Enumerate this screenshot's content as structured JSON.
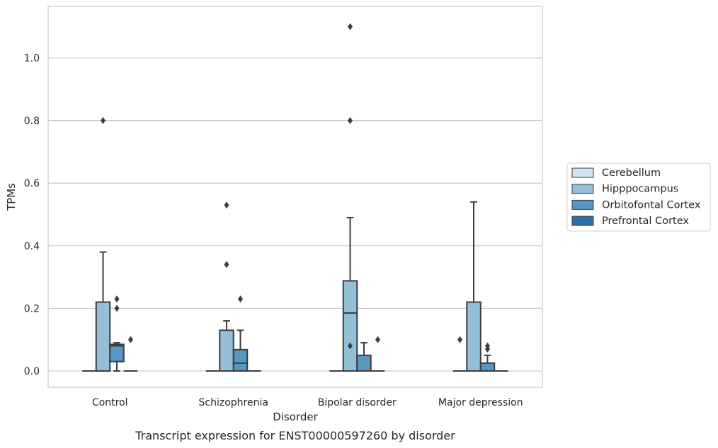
{
  "chart_data": {
    "type": "box",
    "caption": "Transcript expression for ENST00000597260 by disorder",
    "xlabel": "Disorder",
    "ylabel": "TPMs",
    "ylim": [
      -0.052,
      1.165
    ],
    "yticks": [
      0.0,
      0.2,
      0.4,
      0.6,
      0.8,
      1.0
    ],
    "ytick_labels": [
      "0.0",
      "0.2",
      "0.4",
      "0.6",
      "0.8",
      "1.0"
    ],
    "grid": "horizontal",
    "legend_placement": "right",
    "categories": [
      "Control",
      "Schizophrenia",
      "Bipolar disorder",
      "Major depression"
    ],
    "series": [
      {
        "name": "Cerebellum",
        "color": "#d3e3f2",
        "boxes": [
          {
            "q1": 0,
            "median": 0,
            "q3": 0,
            "whisker_low": 0,
            "whisker_high": 0,
            "outliers": []
          },
          {
            "q1": 0,
            "median": 0,
            "q3": 0,
            "whisker_low": 0,
            "whisker_high": 0,
            "outliers": []
          },
          {
            "q1": 0,
            "median": 0,
            "q3": 0,
            "whisker_low": 0,
            "whisker_high": 0,
            "outliers": []
          },
          {
            "q1": 0,
            "median": 0,
            "q3": 0,
            "whisker_low": 0,
            "whisker_high": 0,
            "outliers": [
              0.1
            ]
          }
        ]
      },
      {
        "name": "Hipppocampus",
        "color": "#95bfd8",
        "boxes": [
          {
            "q1": 0,
            "median": 0,
            "q3": 0.22,
            "whisker_low": 0,
            "whisker_high": 0.38,
            "outliers": [
              0.8
            ]
          },
          {
            "q1": 0,
            "median": 0,
            "q3": 0.13,
            "whisker_low": 0,
            "whisker_high": 0.16,
            "outliers": [
              0.34,
              0.53
            ]
          },
          {
            "q1": 0,
            "median": 0.185,
            "q3": 0.288,
            "whisker_low": 0,
            "whisker_high": 0.49,
            "outliers": [
              0.08,
              0.8,
              1.1
            ]
          },
          {
            "q1": 0,
            "median": 0,
            "q3": 0.22,
            "whisker_low": 0,
            "whisker_high": 0.54,
            "outliers": []
          }
        ]
      },
      {
        "name": "Orbitofontal Cortex",
        "color": "#5697c4",
        "boxes": [
          {
            "q1": 0.03,
            "median": 0.08,
            "q3": 0.085,
            "whisker_low": 0,
            "whisker_high": 0.09,
            "outliers": [
              0.2,
              0.23
            ]
          },
          {
            "q1": 0,
            "median": 0.025,
            "q3": 0.068,
            "whisker_low": 0,
            "whisker_high": 0.13,
            "outliers": [
              0.23
            ]
          },
          {
            "q1": 0,
            "median": 0,
            "q3": 0.05,
            "whisker_low": 0,
            "whisker_high": 0.09,
            "outliers": []
          },
          {
            "q1": 0,
            "median": 0,
            "q3": 0.025,
            "whisker_low": 0,
            "whisker_high": 0.05,
            "outliers": [
              0.07,
              0.08
            ]
          }
        ]
      },
      {
        "name": "Prefrontal Cortex",
        "color": "#2f6ea8",
        "boxes": [
          {
            "q1": 0,
            "median": 0,
            "q3": 0,
            "whisker_low": 0,
            "whisker_high": 0,
            "outliers": [
              0.1
            ]
          },
          {
            "q1": 0,
            "median": 0,
            "q3": 0,
            "whisker_low": 0,
            "whisker_high": 0,
            "outliers": []
          },
          {
            "q1": 0,
            "median": 0,
            "q3": 0,
            "whisker_low": 0,
            "whisker_high": 0,
            "outliers": [
              0.1
            ]
          },
          {
            "q1": 0,
            "median": 0,
            "q3": 0,
            "whisker_low": 0,
            "whisker_high": 0,
            "outliers": []
          }
        ]
      }
    ]
  }
}
